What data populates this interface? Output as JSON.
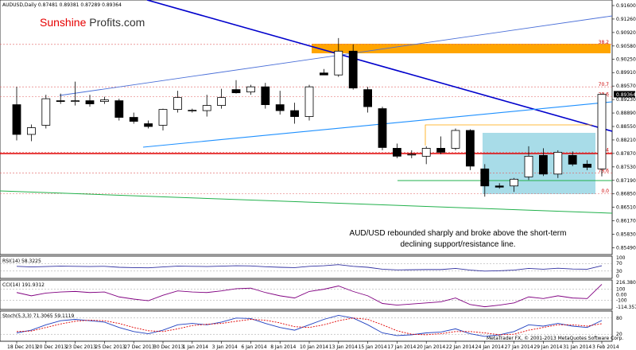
{
  "header": {
    "symbol_line": "AUDUSD,Daily  0.87481 0.89381 0.87289 0.89364",
    "brand_sunshine": "Sunshine",
    "brand_profits": " Profits.com"
  },
  "annotation": {
    "line1": "AUD/USD rebounded sharply and broke above the short-term",
    "line2": "declining support/resistance line."
  },
  "footer": {
    "copyright": "MetaTrader FX, © 2001-2013 MetaQuotes Software Corp."
  },
  "colors": {
    "up_candle": "#ffffff",
    "down_candle": "#000000",
    "orange_zone": "#ffa500",
    "blue_zone": "#a8dce8",
    "support_red": "#e00000",
    "green_line": "#22b14c",
    "trend_blue_dark": "#0000cc",
    "trend_blue_light": "#4a6fd8",
    "trend_blue_sky": "#1e90ff",
    "brand_red": "#e60000",
    "brand_dark": "#333333"
  },
  "chart_data": {
    "type": "candlestick",
    "price_axis_ticks": [
      "0.91600",
      "0.91260",
      "0.90920",
      "0.90580",
      "0.90250",
      "0.89910",
      "0.89570",
      "0.89230",
      "0.88890",
      "0.88550",
      "0.88210",
      "0.87870",
      "0.87530",
      "0.87190",
      "0.86850",
      "0.86510",
      "0.86170",
      "0.85830",
      "0.85490"
    ],
    "price_range": [
      0.8536,
      0.9166
    ],
    "current_price_label": "0.89364",
    "current_price": 0.89364,
    "date_labels": [
      {
        "label": "18 Dec 2013",
        "idx": 0
      },
      {
        "label": "20 Dec 2013",
        "idx": 2
      },
      {
        "label": "23 Dec 2013",
        "idx": 4
      },
      {
        "label": "25 Dec 2013",
        "idx": 6
      },
      {
        "label": "27 Dec 2013",
        "idx": 8
      },
      {
        "label": "30 Dec 2013",
        "idx": 10
      },
      {
        "label": "1 Jan 2014",
        "idx": 12
      },
      {
        "label": "3 Jan 2014",
        "idx": 14
      },
      {
        "label": "6 Jan 2014",
        "idx": 16
      },
      {
        "label": "8 Jan 2014",
        "idx": 18
      },
      {
        "label": "10 Jan 2014",
        "idx": 20
      },
      {
        "label": "13 Jan 2014",
        "idx": 22
      },
      {
        "label": "15 Jan 2014",
        "idx": 24
      },
      {
        "label": "17 Jan 2014",
        "idx": 26
      },
      {
        "label": "20 Jan 2014",
        "idx": 28
      },
      {
        "label": "22 Jan 2014",
        "idx": 30
      },
      {
        "label": "24 Jan 2014",
        "idx": 32
      },
      {
        "label": "27 Jan 2014",
        "idx": 34
      },
      {
        "label": "29 Jan 2014",
        "idx": 36
      },
      {
        "label": "31 Jan 2014",
        "idx": 38
      },
      {
        "label": "3 Feb 2014",
        "idx": 40
      }
    ],
    "candles": [
      {
        "o": 0.891,
        "h": 0.8955,
        "l": 0.882,
        "c": 0.8835
      },
      {
        "o": 0.8835,
        "h": 0.886,
        "l": 0.8818,
        "c": 0.8852
      },
      {
        "o": 0.8858,
        "h": 0.8935,
        "l": 0.885,
        "c": 0.8925
      },
      {
        "o": 0.892,
        "h": 0.8938,
        "l": 0.8912,
        "c": 0.8918
      },
      {
        "o": 0.8918,
        "h": 0.8968,
        "l": 0.8908,
        "c": 0.892
      },
      {
        "o": 0.892,
        "h": 0.8935,
        "l": 0.8905,
        "c": 0.8912
      },
      {
        "o": 0.8918,
        "h": 0.893,
        "l": 0.8912,
        "c": 0.8922
      },
      {
        "o": 0.892,
        "h": 0.8925,
        "l": 0.887,
        "c": 0.8878
      },
      {
        "o": 0.8878,
        "h": 0.889,
        "l": 0.8862,
        "c": 0.8868
      },
      {
        "o": 0.8862,
        "h": 0.887,
        "l": 0.885,
        "c": 0.8855
      },
      {
        "o": 0.8858,
        "h": 0.89,
        "l": 0.8845,
        "c": 0.8898
      },
      {
        "o": 0.8898,
        "h": 0.8945,
        "l": 0.889,
        "c": 0.8928
      },
      {
        "o": 0.8895,
        "h": 0.89,
        "l": 0.889,
        "c": 0.8896
      },
      {
        "o": 0.8895,
        "h": 0.8935,
        "l": 0.888,
        "c": 0.8908
      },
      {
        "o": 0.8908,
        "h": 0.895,
        "l": 0.89,
        "c": 0.8928
      },
      {
        "o": 0.8948,
        "h": 0.8972,
        "l": 0.8938,
        "c": 0.894
      },
      {
        "o": 0.8942,
        "h": 0.896,
        "l": 0.8935,
        "c": 0.8955
      },
      {
        "o": 0.8955,
        "h": 0.8965,
        "l": 0.89,
        "c": 0.891
      },
      {
        "o": 0.891,
        "h": 0.8945,
        "l": 0.8885,
        "c": 0.8895
      },
      {
        "o": 0.8895,
        "h": 0.8915,
        "l": 0.8862,
        "c": 0.888
      },
      {
        "o": 0.888,
        "h": 0.896,
        "l": 0.887,
        "c": 0.8955
      },
      {
        "o": 0.899,
        "h": 0.9,
        "l": 0.8985,
        "c": 0.8985
      },
      {
        "o": 0.8985,
        "h": 0.9078,
        "l": 0.898,
        "c": 0.9045
      },
      {
        "o": 0.9045,
        "h": 0.9062,
        "l": 0.8948,
        "c": 0.8952
      },
      {
        "o": 0.8948,
        "h": 0.8955,
        "l": 0.889,
        "c": 0.8905
      },
      {
        "o": 0.89,
        "h": 0.8905,
        "l": 0.8795,
        "c": 0.8802
      },
      {
        "o": 0.88,
        "h": 0.8812,
        "l": 0.8775,
        "c": 0.878
      },
      {
        "o": 0.8785,
        "h": 0.8795,
        "l": 0.8775,
        "c": 0.8785
      },
      {
        "o": 0.878,
        "h": 0.8805,
        "l": 0.876,
        "c": 0.88
      },
      {
        "o": 0.88,
        "h": 0.883,
        "l": 0.8785,
        "c": 0.879
      },
      {
        "o": 0.88,
        "h": 0.885,
        "l": 0.8795,
        "c": 0.8845
      },
      {
        "o": 0.8845,
        "h": 0.8848,
        "l": 0.8745,
        "c": 0.8755
      },
      {
        "o": 0.8748,
        "h": 0.876,
        "l": 0.8678,
        "c": 0.8705
      },
      {
        "o": 0.8705,
        "h": 0.8712,
        "l": 0.8698,
        "c": 0.8702
      },
      {
        "o": 0.8705,
        "h": 0.8725,
        "l": 0.869,
        "c": 0.8722
      },
      {
        "o": 0.8728,
        "h": 0.8805,
        "l": 0.872,
        "c": 0.878
      },
      {
        "o": 0.8782,
        "h": 0.88,
        "l": 0.873,
        "c": 0.8735
      },
      {
        "o": 0.8735,
        "h": 0.8795,
        "l": 0.8725,
        "c": 0.879
      },
      {
        "o": 0.8782,
        "h": 0.8792,
        "l": 0.8755,
        "c": 0.876
      },
      {
        "o": 0.876,
        "h": 0.877,
        "l": 0.8745,
        "c": 0.8752
      },
      {
        "o": 0.8748,
        "h": 0.8938,
        "l": 0.8729,
        "c": 0.8936
      }
    ],
    "fib_levels": [
      {
        "label": "38.2",
        "price": 0.9062
      },
      {
        "label": "70.7",
        "price": 0.8955
      },
      {
        "label": "23.6",
        "price": 0.893
      },
      {
        "label": "76.4",
        "price": 0.879
      },
      {
        "label": "78.6",
        "price": 0.8738
      },
      {
        "label": "0.0",
        "price": 0.8686
      }
    ],
    "indicators": [
      {
        "label": "RSI(14) 58.3225",
        "scale_labels": [
          "100",
          "70",
          "30",
          "0"
        ]
      },
      {
        "label": "CCI(14) 191.9312",
        "scale_labels": [
          "216.3802",
          "100",
          "0.00",
          "-100",
          "-114.3575"
        ]
      },
      {
        "label": "Stoch(5,3,3) 71.3065 59.1119",
        "scale_labels": [
          "80",
          "20"
        ]
      }
    ],
    "rsi": [
      55,
      52,
      54,
      56,
      55,
      54,
      55,
      50,
      48,
      47,
      52,
      56,
      55,
      54,
      56,
      58,
      57,
      53,
      50,
      48,
      55,
      58,
      64,
      55,
      50,
      40,
      36,
      37,
      38,
      38,
      44,
      35,
      30,
      32,
      35,
      44,
      40,
      45,
      41,
      40,
      58
    ],
    "cci": [
      40,
      -20,
      30,
      50,
      60,
      40,
      50,
      -40,
      -80,
      -110,
      -10,
      70,
      50,
      40,
      70,
      110,
      120,
      40,
      -20,
      -60,
      60,
      100,
      160,
      60,
      -20,
      -160,
      -190,
      -170,
      -150,
      -130,
      -60,
      -180,
      -220,
      -190,
      -150,
      -40,
      -70,
      -20,
      -60,
      -70,
      190
    ],
    "stoch_k": [
      25,
      35,
      55,
      70,
      75,
      70,
      65,
      45,
      30,
      22,
      35,
      55,
      60,
      55,
      65,
      80,
      78,
      60,
      45,
      35,
      55,
      75,
      90,
      80,
      55,
      25,
      15,
      18,
      25,
      28,
      40,
      22,
      12,
      18,
      30,
      55,
      50,
      60,
      50,
      45,
      71
    ],
    "stoch_d": [
      30,
      32,
      45,
      58,
      68,
      72,
      70,
      60,
      45,
      33,
      30,
      40,
      52,
      57,
      60,
      68,
      75,
      72,
      62,
      48,
      45,
      55,
      70,
      80,
      75,
      55,
      33,
      20,
      18,
      22,
      30,
      30,
      25,
      18,
      20,
      35,
      45,
      55,
      55,
      50,
      59
    ]
  }
}
